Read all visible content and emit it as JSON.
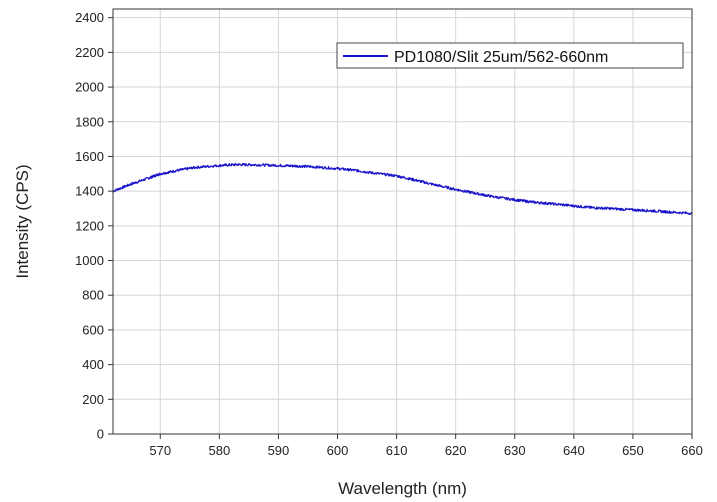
{
  "chart_data": {
    "type": "line",
    "title": "",
    "xlabel": "Wavelength (nm)",
    "ylabel": "Intensity (CPS)",
    "xlim": [
      562,
      660
    ],
    "ylim": [
      0,
      2450
    ],
    "x_ticks": [
      570,
      580,
      590,
      600,
      610,
      620,
      630,
      640,
      650,
      660
    ],
    "y_ticks": [
      0,
      200,
      400,
      600,
      800,
      1000,
      1200,
      1400,
      1600,
      1800,
      2000,
      2200,
      2400
    ],
    "grid": true,
    "legend_position": "top-right",
    "series": [
      {
        "name": "PD1080/Slit 25um/562-660nm",
        "color": "#1a14c8",
        "x": [
          562,
          565,
          568,
          570,
          573,
          576,
          580,
          583,
          586,
          590,
          593,
          596,
          600,
          603,
          606,
          610,
          613,
          616,
          620,
          623,
          626,
          630,
          633,
          636,
          640,
          643,
          646,
          650,
          653,
          656,
          660
        ],
        "y": [
          1400,
          1440,
          1475,
          1500,
          1520,
          1537,
          1548,
          1553,
          1552,
          1548,
          1545,
          1540,
          1530,
          1520,
          1505,
          1488,
          1465,
          1440,
          1410,
          1390,
          1370,
          1350,
          1337,
          1328,
          1315,
          1305,
          1300,
          1292,
          1287,
          1280,
          1272
        ]
      }
    ]
  }
}
